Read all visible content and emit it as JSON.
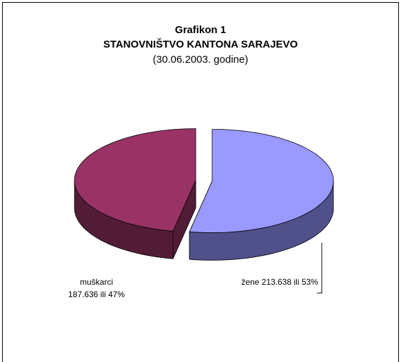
{
  "chart_data": {
    "type": "pie",
    "title": "Grafikon 1",
    "subtitle": "STANOVNIŠTVO KANTONA SARAJEVO",
    "note": "(30.06.2003. godine)",
    "categories": [
      "žene",
      "muškarci"
    ],
    "values": [
      53,
      47
    ],
    "value_labels": [
      "213.638 ili 53%",
      "187.636  ili 47%"
    ],
    "colors": [
      "#9999ff",
      "#993366"
    ],
    "side_colors": [
      "#50508a",
      "#521c37"
    ]
  }
}
